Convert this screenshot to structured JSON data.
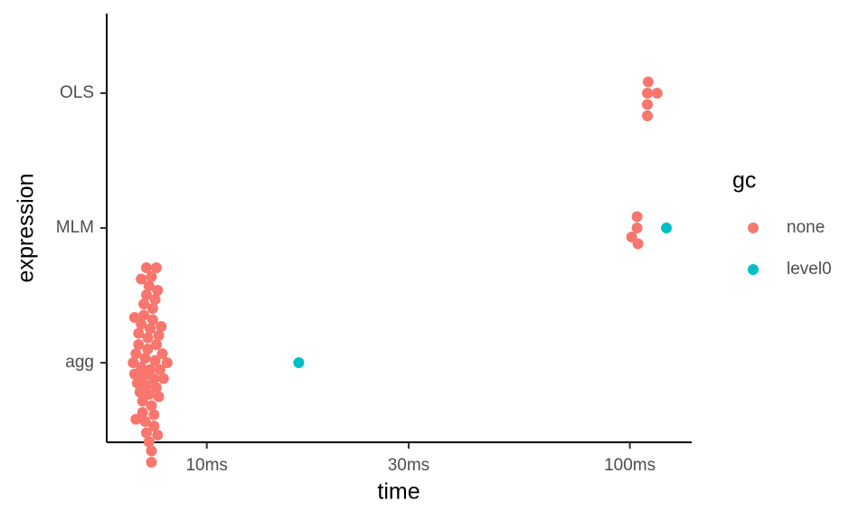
{
  "chart_data": {
    "type": "scatter",
    "x_label": "time",
    "y_label": "expression",
    "categories": [
      "agg",
      "MLM",
      "OLS"
    ],
    "log_x": true,
    "xlim": [
      5.8,
      140
    ],
    "xticks": [
      {
        "value": 10,
        "label": "10ms"
      },
      {
        "value": 30,
        "label": "30ms"
      },
      {
        "value": 100,
        "label": "100ms"
      }
    ],
    "legend_title": "gc",
    "legend_position": "right",
    "series": [
      {
        "name": "none",
        "color": "#F8766D",
        "x": [
          110,
          116,
          110,
          110.5,
          110,
          104,
          101,
          104,
          104.5,
          6.7,
          6.75,
          6.8,
          6.85,
          6.9,
          6.9,
          6.95,
          7.0,
          7.0,
          7.05,
          7.05,
          7.1,
          7.1,
          7.1,
          7.15,
          7.15,
          7.2,
          7.2,
          7.2,
          7.25,
          7.25,
          7.3,
          7.3,
          7.3,
          7.35,
          7.35,
          7.4,
          7.4,
          7.4,
          7.45,
          7.45,
          7.5,
          7.5,
          7.5,
          7.55,
          7.55,
          7.6,
          7.6,
          7.65,
          7.65,
          7.7,
          7.7,
          7.75,
          7.8,
          7.85,
          7.9,
          8.06,
          6.75,
          6.8,
          7.0,
          7.2,
          7.4,
          7.6
        ],
        "y": [
          "OLS",
          "OLS",
          "OLS",
          "OLS",
          "OLS",
          "MLM",
          "MLM",
          "MLM",
          "MLM",
          "agg",
          "agg",
          "agg",
          "agg",
          "agg",
          "agg",
          "agg",
          "agg",
          "agg",
          "agg",
          "agg",
          "agg",
          "agg",
          "agg",
          "agg",
          "agg",
          "agg",
          "agg",
          "agg",
          "agg",
          "agg",
          "agg",
          "agg",
          "agg",
          "agg",
          "agg",
          "agg",
          "agg",
          "agg",
          "agg",
          "agg",
          "agg",
          "agg",
          "agg",
          "agg",
          "agg",
          "agg",
          "agg",
          "agg",
          "agg",
          "agg",
          "agg",
          "agg",
          "agg",
          "agg",
          "agg",
          "agg",
          "agg",
          "agg",
          "agg",
          "agg",
          "agg",
          "agg"
        ]
      },
      {
        "name": "level0",
        "color": "#00BFC4",
        "x": [
          122,
          16.5
        ],
        "y": [
          "MLM",
          "agg"
        ]
      }
    ]
  }
}
